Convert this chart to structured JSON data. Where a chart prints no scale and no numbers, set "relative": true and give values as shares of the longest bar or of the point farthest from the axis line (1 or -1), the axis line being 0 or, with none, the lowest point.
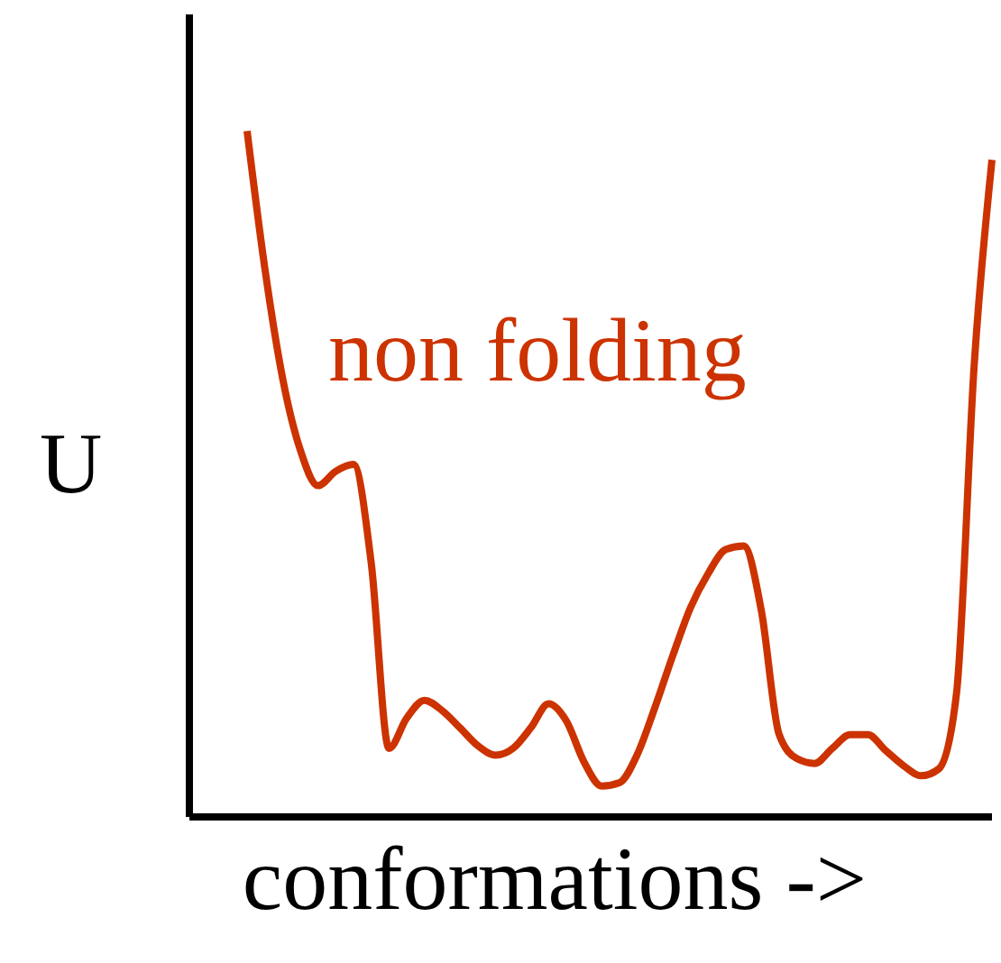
{
  "chart_data": {
    "type": "line",
    "relative": true,
    "xlabel": "conformations ->",
    "ylabel": "U",
    "annotations": [
      "non folding"
    ],
    "marker": "none",
    "categories": [
      null,
      null,
      null,
      null,
      null,
      null,
      null,
      null,
      null,
      null,
      null,
      null,
      null,
      null,
      null,
      null,
      null,
      null,
      null,
      null,
      null,
      null,
      null,
      null,
      null,
      null,
      null,
      null,
      null,
      null,
      null,
      null,
      null,
      null,
      null,
      null,
      null,
      null,
      null,
      null,
      null,
      null,
      null
    ],
    "series": [
      {
        "color": "#cc3300",
        "values": [
          1.0,
          0.8,
          0.64,
          0.535,
          0.483,
          0.504,
          0.514,
          0.37,
          0.1,
          0.144,
          0.17,
          0.155,
          0.13,
          0.104,
          0.09,
          0.1,
          0.13,
          0.165,
          0.14,
          0.08,
          0.045,
          0.05,
          0.091,
          0.16,
          0.235,
          0.305,
          0.355,
          0.39,
          0.395,
          0.3,
          0.12,
          0.085,
          0.078,
          0.1,
          0.12,
          0.12,
          0.097,
          0.075,
          0.06,
          0.07,
          0.18,
          0.66,
          0.958
        ]
      }
    ]
  }
}
